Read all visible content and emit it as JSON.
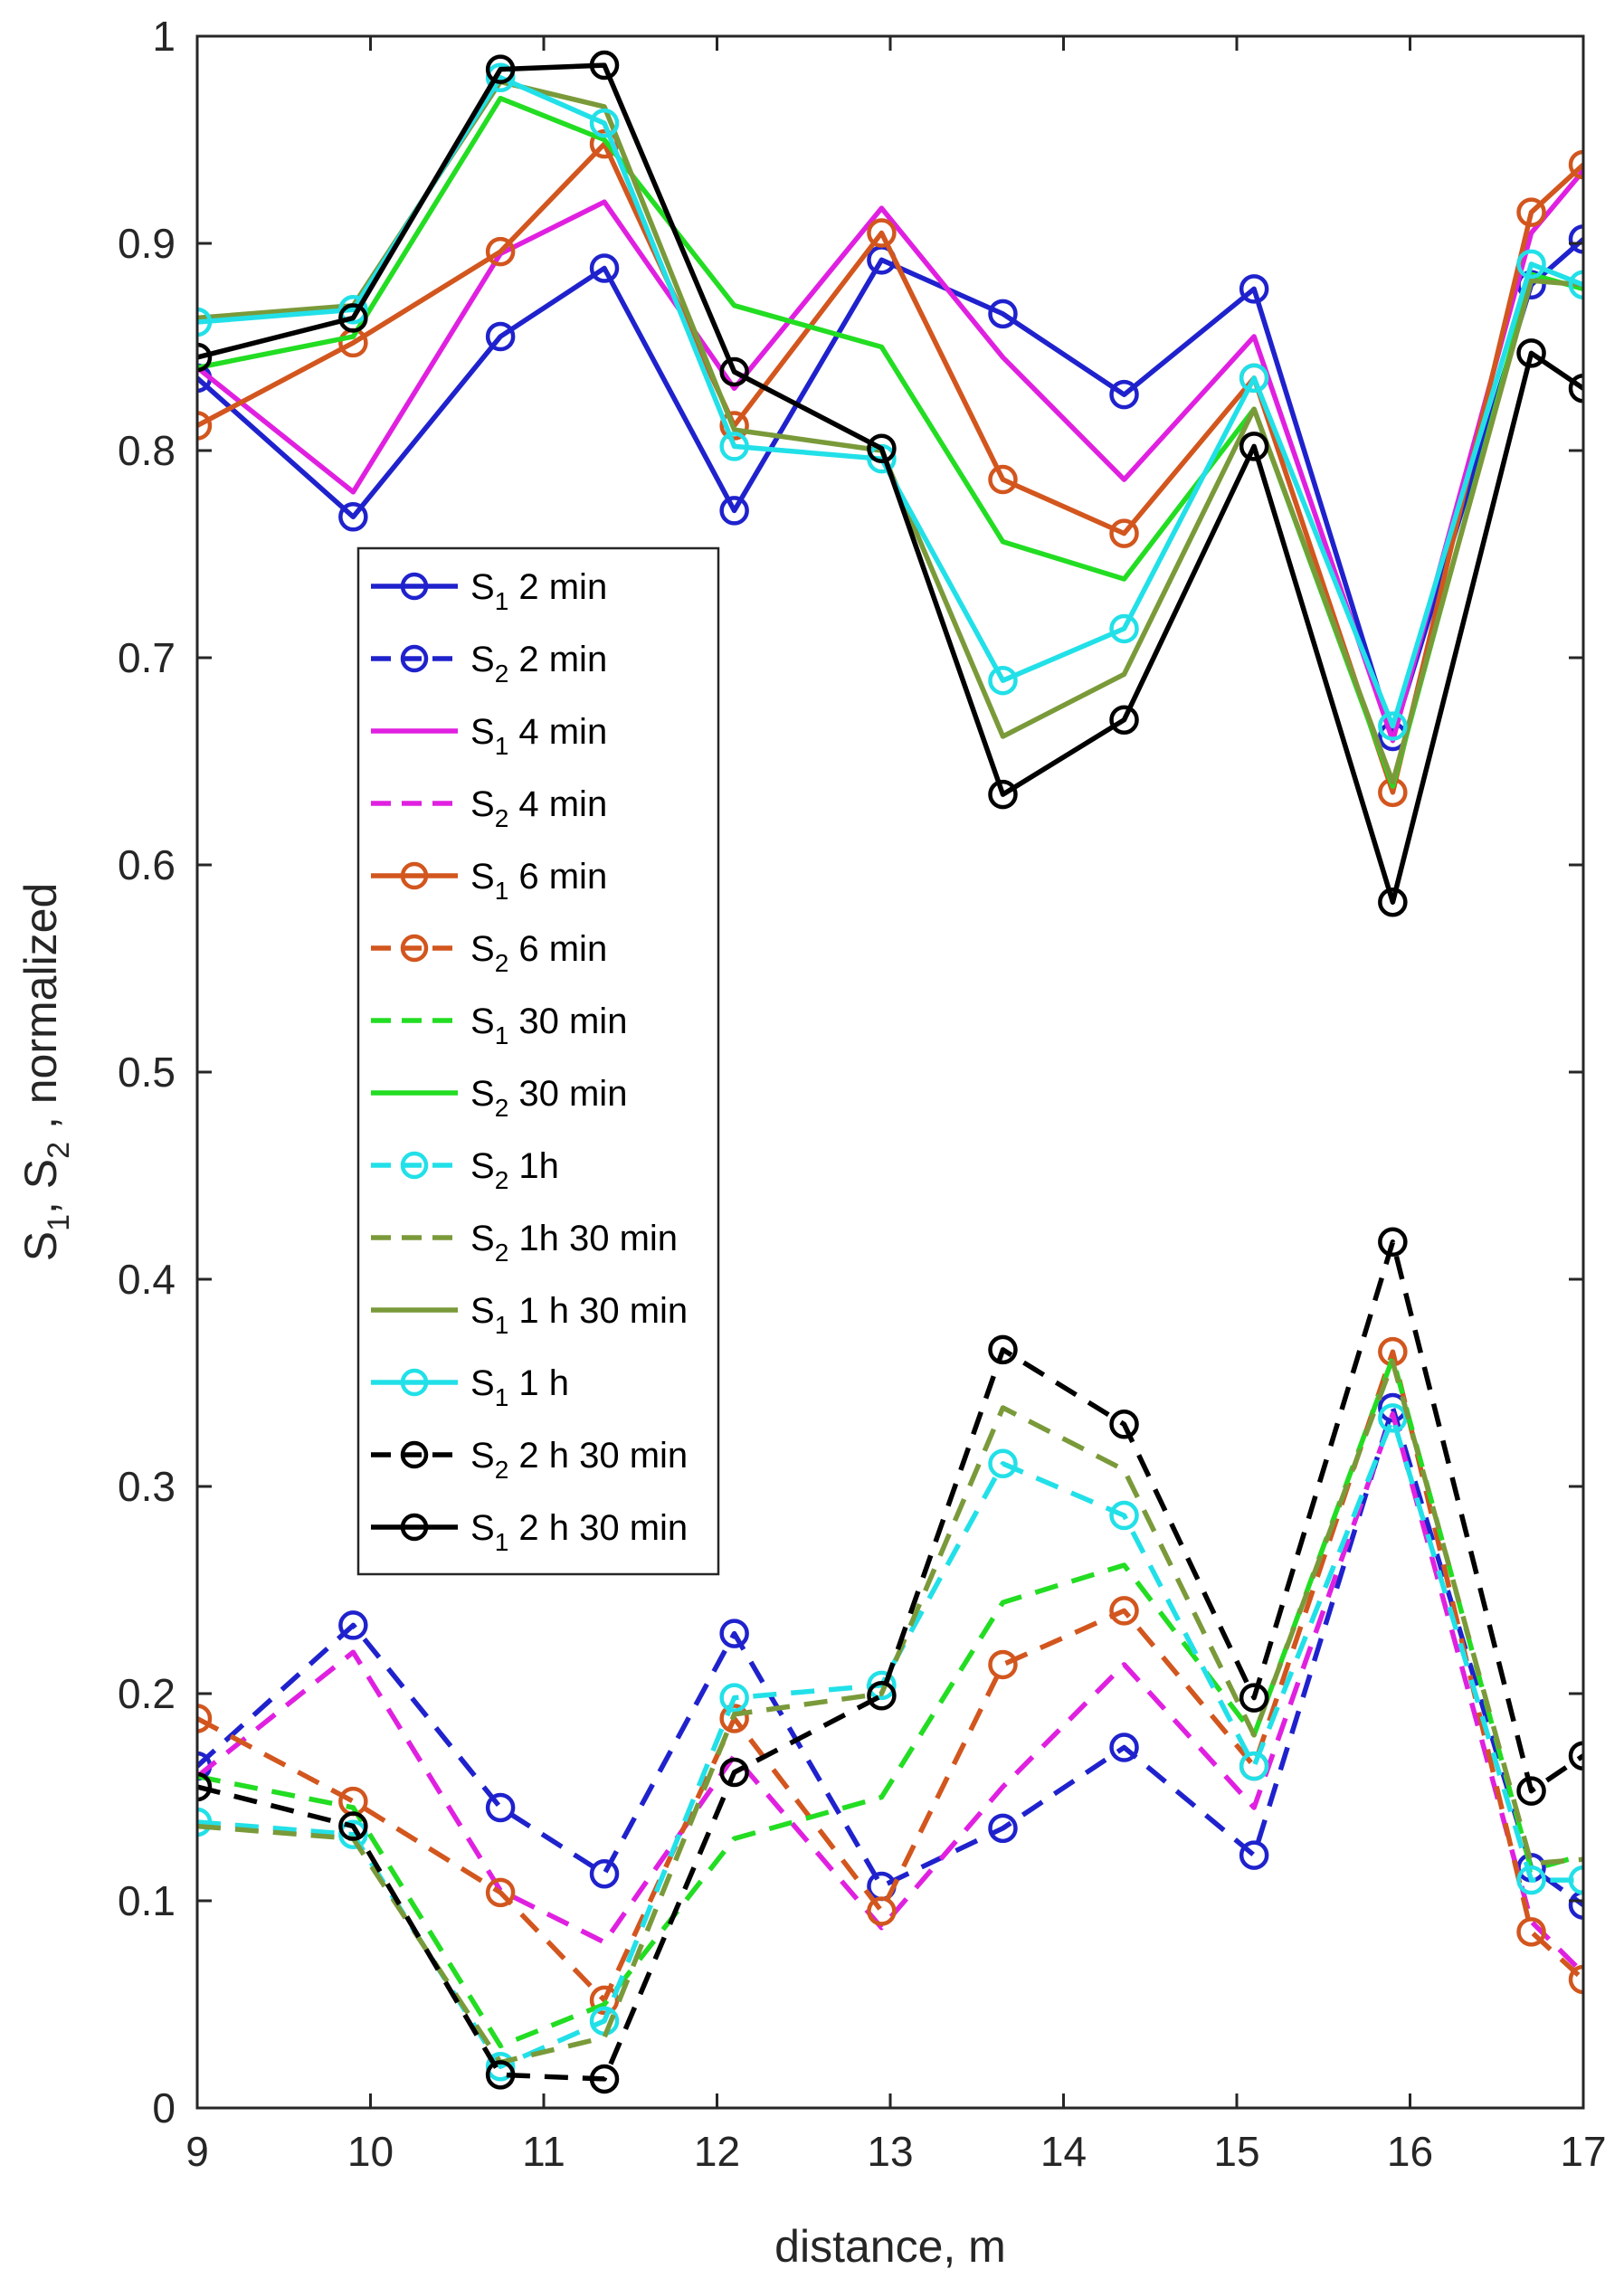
{
  "chart_data": {
    "type": "line",
    "title": "",
    "xlabel": "distance, m",
    "ylabel": {
      "s1": "S",
      "s1_sub": "1",
      "sep": ", S",
      "s2_sub": "2",
      "tail": " , normalized"
    },
    "xlim": [
      9,
      17
    ],
    "ylim": [
      0,
      1
    ],
    "xticks": [
      "9",
      "10",
      "11",
      "12",
      "13",
      "14",
      "15",
      "16",
      "17"
    ],
    "yticks": [
      "0",
      "0.1",
      "0.2",
      "0.3",
      "0.4",
      "0.5",
      "0.6",
      "0.7",
      "0.8",
      "0.9",
      "1"
    ],
    "grid": false,
    "legend_position": "inside-left",
    "x": [
      9,
      9.9,
      10.75,
      11.35,
      12.1,
      12.95,
      13.65,
      14.35,
      15.1,
      15.9,
      16.7,
      17
    ],
    "series": [
      {
        "name": "2 min",
        "sym": "S",
        "sub": "1",
        "color": "#1f22cc",
        "dash": false,
        "marker": true,
        "values": [
          0.835,
          0.768,
          0.855,
          0.888,
          0.771,
          0.892,
          0.866,
          0.827,
          0.878,
          0.662,
          0.88,
          0.902
        ]
      },
      {
        "name": "2 min",
        "sym": "S",
        "sub": "2",
        "color": "#1f22cc",
        "dash": true,
        "marker": true,
        "values": [
          0.165,
          0.233,
          0.145,
          0.113,
          0.229,
          0.107,
          0.135,
          0.174,
          0.122,
          0.338,
          0.116,
          0.098
        ]
      },
      {
        "name": "4 min",
        "sym": "S",
        "sub": "1",
        "color": "#e020e0",
        "dash": false,
        "marker": false,
        "values": [
          0.84,
          0.78,
          0.895,
          0.92,
          0.83,
          0.917,
          0.845,
          0.786,
          0.855,
          0.66,
          0.905,
          0.935
        ]
      },
      {
        "name": "4 min",
        "sym": "S",
        "sub": "2",
        "color": "#e020e0",
        "dash": true,
        "marker": false,
        "values": [
          0.16,
          0.22,
          0.105,
          0.08,
          0.17,
          0.087,
          0.155,
          0.214,
          0.145,
          0.335,
          0.09,
          0.065
        ]
      },
      {
        "name": "6 min",
        "sym": "S",
        "sub": "1",
        "color": "#d2561e",
        "dash": false,
        "marker": true,
        "values": [
          0.812,
          0.852,
          0.896,
          0.948,
          0.812,
          0.905,
          0.786,
          0.76,
          0.835,
          0.635,
          0.915,
          0.938
        ]
      },
      {
        "name": "6 min",
        "sym": "S",
        "sub": "2",
        "color": "#d2561e",
        "dash": true,
        "marker": true,
        "values": [
          0.188,
          0.148,
          0.104,
          0.052,
          0.188,
          0.095,
          0.214,
          0.24,
          0.165,
          0.365,
          0.085,
          0.062
        ]
      },
      {
        "name": "30 min",
        "sym": "S",
        "sub": "1",
        "color": "#22dd22",
        "dash": true,
        "marker": false,
        "values": [
          0.16,
          0.145,
          0.03,
          0.05,
          0.13,
          0.15,
          0.244,
          0.262,
          0.18,
          0.362,
          0.115,
          0.122
        ]
      },
      {
        "name": "30 min",
        "sym": "S",
        "sub": "2",
        "color": "#22dd22",
        "dash": false,
        "marker": false,
        "values": [
          0.84,
          0.855,
          0.97,
          0.95,
          0.87,
          0.85,
          0.756,
          0.738,
          0.82,
          0.638,
          0.885,
          0.878
        ]
      },
      {
        "name": "1h",
        "sym": "S",
        "sub": "2",
        "color": "#22e0e8",
        "dash": true,
        "marker": true,
        "values": [
          0.138,
          0.132,
          0.02,
          0.042,
          0.198,
          0.204,
          0.311,
          0.286,
          0.165,
          0.333,
          0.11,
          0.11
        ]
      },
      {
        "name": "1h 30 min",
        "sym": "S",
        "sub": "2",
        "color": "#7a9a3a",
        "dash": true,
        "marker": false,
        "values": [
          0.136,
          0.13,
          0.022,
          0.034,
          0.19,
          0.2,
          0.338,
          0.308,
          0.18,
          0.36,
          0.118,
          0.12
        ]
      },
      {
        "name": "1 h 30 min",
        "sym": "S",
        "sub": "1",
        "color": "#7a9a3a",
        "dash": false,
        "marker": false,
        "values": [
          0.864,
          0.87,
          0.978,
          0.966,
          0.81,
          0.8,
          0.662,
          0.692,
          0.82,
          0.64,
          0.882,
          0.88
        ]
      },
      {
        "name": "1 h",
        "sym": "S",
        "sub": "1",
        "color": "#22e0e8",
        "dash": false,
        "marker": true,
        "values": [
          0.862,
          0.868,
          0.98,
          0.958,
          0.802,
          0.796,
          0.689,
          0.714,
          0.835,
          0.667,
          0.89,
          0.88
        ]
      },
      {
        "name": "2 h 30 min",
        "sym": "S",
        "sub": "2",
        "color": "#000000",
        "dash": true,
        "marker": true,
        "values": [
          0.155,
          0.136,
          0.016,
          0.014,
          0.162,
          0.199,
          0.366,
          0.33,
          0.198,
          0.418,
          0.153,
          0.17
        ]
      },
      {
        "name": "2 h 30 min",
        "sym": "S",
        "sub": "1",
        "color": "#000000",
        "dash": false,
        "marker": true,
        "values": [
          0.845,
          0.864,
          0.984,
          0.986,
          0.838,
          0.801,
          0.634,
          0.67,
          0.802,
          0.582,
          0.847,
          0.83
        ]
      }
    ]
  }
}
